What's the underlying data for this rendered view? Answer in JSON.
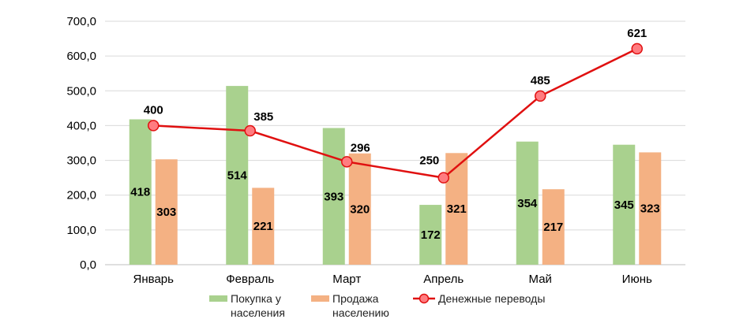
{
  "colors": {
    "purchase": "#a9d18e",
    "sale": "#f4b183",
    "transfers": "#e01010",
    "transfers_marker": "#ff7c80",
    "grid": "#d9d9d9"
  },
  "legend": {
    "purchase": "Покупка у населения",
    "sale": "Продажа населению",
    "transfers": "Денежные переводы"
  },
  "chart_data": {
    "type": "bar",
    "categories": [
      "Январь",
      "Февраль",
      "Март",
      "Апрель",
      "Май",
      "Июнь"
    ],
    "series": [
      {
        "name": "Покупка у населения",
        "type": "bar",
        "values": [
          418,
          514,
          393,
          172,
          354,
          345
        ]
      },
      {
        "name": "Продажа населению",
        "type": "bar",
        "values": [
          303,
          221,
          320,
          321,
          217,
          323
        ]
      },
      {
        "name": "Денежные переводы",
        "type": "line",
        "values": [
          400,
          385,
          296,
          250,
          485,
          621
        ]
      }
    ],
    "y_ticks": [
      "0,0",
      "100,0",
      "200,0",
      "300,0",
      "400,0",
      "500,0",
      "600,0",
      "700,0"
    ],
    "ylim": [
      0,
      700
    ],
    "grid": true,
    "legend_position": "bottom"
  }
}
